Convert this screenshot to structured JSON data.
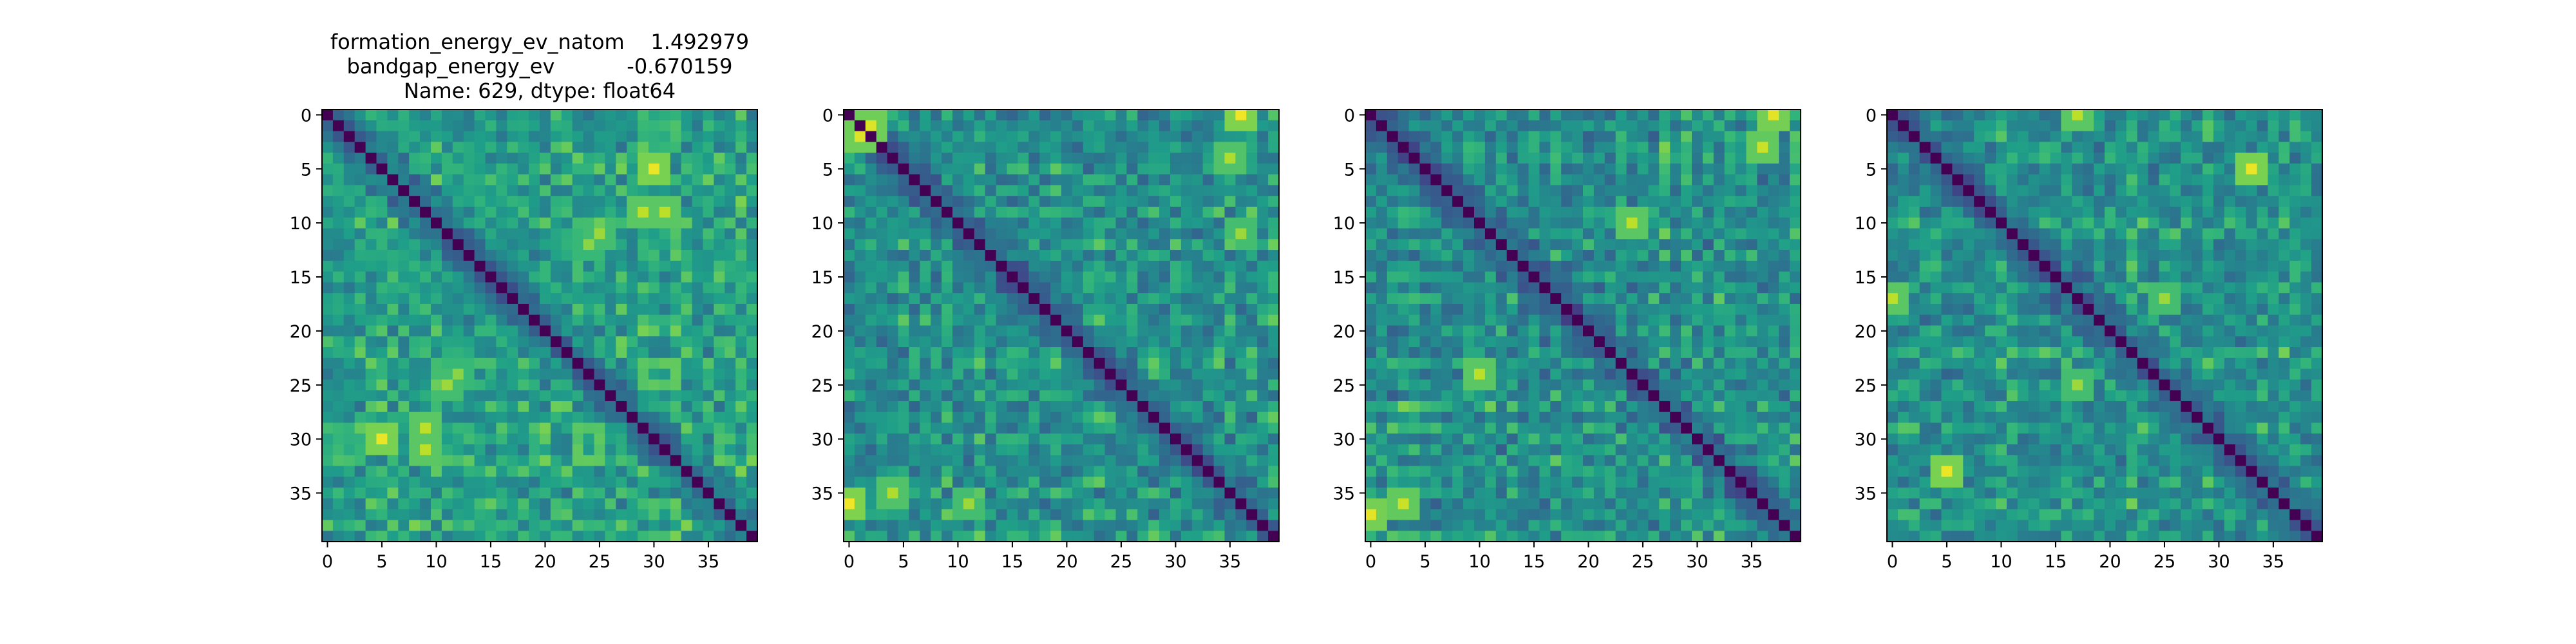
{
  "figure": {
    "background": "#ffffff",
    "colormap": "viridis",
    "colormap_stops": [
      "#440154",
      "#482878",
      "#3e4a89",
      "#31688e",
      "#26828e",
      "#1f9e89",
      "#35b779",
      "#6ece58",
      "#b5de2b",
      "#fde725"
    ]
  },
  "chart_data": [
    {
      "type": "heatmap",
      "title_lines": [
        "formation_energy_ev_natom    1.492979",
        "bandgap_energy_ev           -0.670159",
        "Name: 629, dtype: float64"
      ],
      "matrix_size": 40,
      "xticks": [
        0,
        5,
        10,
        15,
        20,
        25,
        30,
        35
      ],
      "yticks": [
        0,
        5,
        10,
        15,
        20,
        25,
        30,
        35
      ],
      "grid": false,
      "value_range": [
        0,
        1
      ],
      "diagonal_value": 0,
      "hotspots": [
        {
          "row": 30,
          "col": 5,
          "value": 0.97
        },
        {
          "row": 29,
          "col": 9,
          "value": 0.9
        },
        {
          "row": 25,
          "col": 11,
          "value": 0.85
        },
        {
          "row": 5,
          "col": 30,
          "value": 0.97
        },
        {
          "row": 9,
          "col": 31,
          "value": 0.9
        },
        {
          "row": 11,
          "col": 25,
          "value": 0.85
        },
        {
          "row": 12,
          "col": 24,
          "value": 0.82
        }
      ],
      "base_level": 0.45,
      "seed": 11
    },
    {
      "type": "heatmap",
      "title_lines": [],
      "matrix_size": 40,
      "xticks": [
        0,
        5,
        10,
        15,
        20,
        25,
        30,
        35
      ],
      "yticks": [
        0,
        5,
        10,
        15,
        20,
        25,
        30,
        35
      ],
      "grid": false,
      "value_range": [
        0,
        1
      ],
      "diagonal_value": 0,
      "hotspots": [
        {
          "row": 0,
          "col": 36,
          "value": 0.98
        },
        {
          "row": 36,
          "col": 0,
          "value": 0.98
        },
        {
          "row": 1,
          "col": 2,
          "value": 0.95
        },
        {
          "row": 2,
          "col": 1,
          "value": 0.95
        },
        {
          "row": 35,
          "col": 4,
          "value": 0.88
        },
        {
          "row": 4,
          "col": 35,
          "value": 0.88
        },
        {
          "row": 11,
          "col": 36,
          "value": 0.85
        },
        {
          "row": 36,
          "col": 11,
          "value": 0.85
        }
      ],
      "base_level": 0.4,
      "seed": 23
    },
    {
      "type": "heatmap",
      "title_lines": [],
      "matrix_size": 40,
      "xticks": [
        0,
        5,
        10,
        15,
        20,
        25,
        30,
        35
      ],
      "yticks": [
        0,
        5,
        10,
        15,
        20,
        25,
        30,
        35
      ],
      "grid": false,
      "value_range": [
        0,
        1
      ],
      "diagonal_value": 0,
      "hotspots": [
        {
          "row": 0,
          "col": 37,
          "value": 0.96
        },
        {
          "row": 37,
          "col": 0,
          "value": 0.96
        },
        {
          "row": 10,
          "col": 24,
          "value": 0.9
        },
        {
          "row": 24,
          "col": 10,
          "value": 0.9
        },
        {
          "row": 36,
          "col": 3,
          "value": 0.92
        },
        {
          "row": 3,
          "col": 36,
          "value": 0.92
        }
      ],
      "base_level": 0.38,
      "seed": 37
    },
    {
      "type": "heatmap",
      "title_lines": [],
      "matrix_size": 40,
      "xticks": [
        0,
        5,
        10,
        15,
        20,
        25,
        30,
        35
      ],
      "yticks": [
        0,
        5,
        10,
        15,
        20,
        25,
        30,
        35
      ],
      "grid": false,
      "value_range": [
        0,
        1
      ],
      "diagonal_value": 0,
      "hotspots": [
        {
          "row": 5,
          "col": 33,
          "value": 0.97
        },
        {
          "row": 33,
          "col": 5,
          "value": 0.97
        },
        {
          "row": 0,
          "col": 17,
          "value": 0.9
        },
        {
          "row": 17,
          "col": 0,
          "value": 0.9
        },
        {
          "row": 17,
          "col": 25,
          "value": 0.85
        },
        {
          "row": 25,
          "col": 17,
          "value": 0.85
        }
      ],
      "base_level": 0.4,
      "seed": 53
    }
  ]
}
